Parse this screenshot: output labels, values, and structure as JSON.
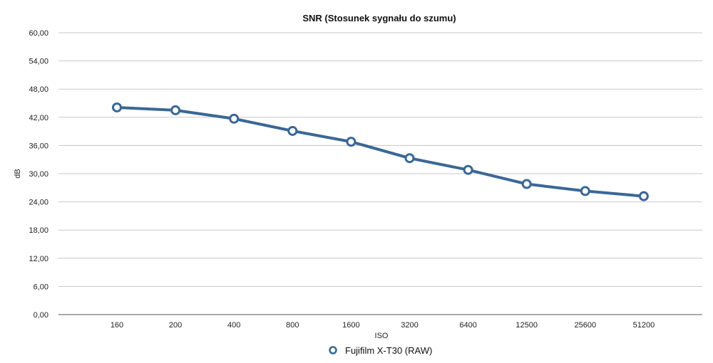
{
  "chart_data": {
    "type": "line",
    "title": "SNR (Stosunek sygnału do szumu)",
    "xlabel": "ISO",
    "ylabel": "dB",
    "categories": [
      "160",
      "200",
      "400",
      "800",
      "1600",
      "3200",
      "6400",
      "12500",
      "25600",
      "51200"
    ],
    "series": [
      {
        "name": "Fujifilm X-T30 (RAW)",
        "color": "#3a6796",
        "values": [
          44.1,
          43.5,
          41.7,
          39.1,
          36.8,
          33.3,
          30.8,
          27.8,
          26.3,
          25.2
        ]
      }
    ],
    "ylim": [
      0,
      60
    ],
    "yticks": [
      "0,00",
      "6,00",
      "12,00",
      "18,00",
      "24,00",
      "30,00",
      "36,00",
      "42,00",
      "48,00",
      "54,00",
      "60,00"
    ],
    "grid": true,
    "legend_position": "bottom"
  }
}
